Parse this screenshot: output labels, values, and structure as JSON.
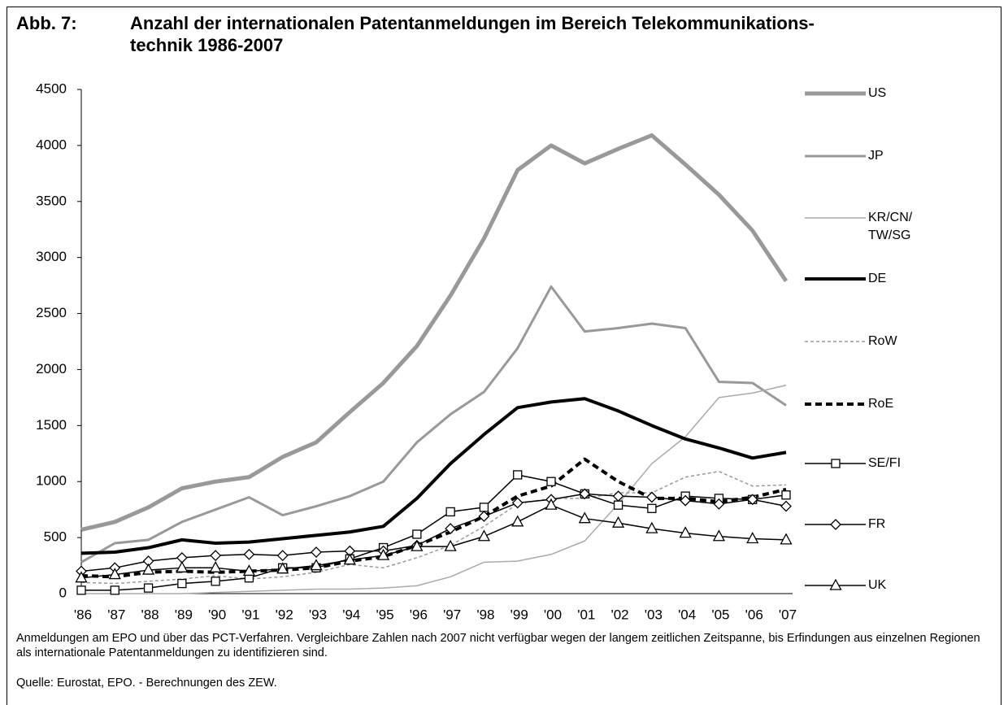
{
  "chart_data": {
    "type": "line",
    "figure_label": "Abb. 7:",
    "title_lines": [
      "Anzahl der internationalen Patentanmeldungen im Bereich Telekommunikations-",
      "technik 1986-2007"
    ],
    "categories": [
      "'86",
      "'87",
      "'88",
      "'89",
      "'90",
      "'91",
      "'92",
      "'93",
      "'94",
      "'95",
      "'96",
      "'97",
      "'98",
      "'99",
      "'00",
      "'01",
      "'02",
      "'03",
      "'04",
      "'05",
      "'06",
      "'07"
    ],
    "ylim": [
      0,
      4500
    ],
    "yticks": [
      0,
      500,
      1000,
      1500,
      2000,
      2500,
      3000,
      3500,
      4000,
      4500
    ],
    "grid": false,
    "legend": "right",
    "series": [
      {
        "name": "US",
        "color": "#999999",
        "width": 5,
        "dash": false,
        "marker": "none",
        "values": [
          570,
          640,
          770,
          940,
          1000,
          1040,
          1220,
          1350,
          1620,
          1880,
          2210,
          2660,
          3170,
          3780,
          4000,
          3840,
          3970,
          4090,
          3830,
          3560,
          3240,
          2790
        ]
      },
      {
        "name": "JP",
        "color": "#999999",
        "width": 3,
        "dash": false,
        "marker": "none",
        "values": [
          280,
          450,
          480,
          640,
          750,
          860,
          700,
          780,
          870,
          1000,
          1350,
          1600,
          1800,
          2190,
          2740,
          2340,
          2370,
          2410,
          2370,
          1890,
          1880,
          1680
        ]
      },
      {
        "name": "KR/CN/TW/SG",
        "color": "#aaaaaa",
        "width": 1.5,
        "dash": false,
        "marker": "none",
        "values": [
          0,
          0,
          0,
          0,
          10,
          20,
          30,
          40,
          40,
          50,
          70,
          150,
          280,
          290,
          350,
          470,
          800,
          1160,
          1400,
          1750,
          1790,
          1860
        ]
      },
      {
        "name": "DE",
        "color": "#000000",
        "width": 4,
        "dash": false,
        "marker": "none",
        "values": [
          360,
          370,
          410,
          480,
          450,
          460,
          490,
          520,
          550,
          600,
          850,
          1160,
          1420,
          1660,
          1710,
          1740,
          1630,
          1500,
          1380,
          1300,
          1210,
          1260
        ]
      },
      {
        "name": "RoW",
        "color": "#999999",
        "width": 1.5,
        "dash": true,
        "marker": "none",
        "values": [
          100,
          90,
          110,
          130,
          160,
          130,
          150,
          190,
          260,
          230,
          320,
          430,
          600,
          800,
          850,
          850,
          900,
          900,
          1040,
          1090,
          960,
          970
        ]
      },
      {
        "name": "RoE",
        "color": "#000000",
        "width": 4,
        "dash": true,
        "marker": "none",
        "values": [
          160,
          150,
          190,
          200,
          190,
          200,
          210,
          230,
          290,
          330,
          430,
          550,
          690,
          870,
          960,
          1200,
          1000,
          850,
          850,
          820,
          860,
          930
        ]
      },
      {
        "name": "SE/FI",
        "color": "#000000",
        "width": 1.5,
        "dash": false,
        "marker": "square",
        "values": [
          30,
          30,
          50,
          90,
          110,
          140,
          230,
          230,
          310,
          410,
          530,
          730,
          770,
          1060,
          1000,
          890,
          790,
          760,
          870,
          850,
          840,
          880
        ]
      },
      {
        "name": "FR",
        "color": "#000000",
        "width": 1.5,
        "dash": false,
        "marker": "diamond",
        "values": [
          200,
          230,
          290,
          320,
          340,
          350,
          340,
          370,
          380,
          380,
          430,
          580,
          690,
          810,
          840,
          890,
          870,
          860,
          830,
          800,
          840,
          780
        ]
      },
      {
        "name": "UK",
        "color": "#000000",
        "width": 1.5,
        "dash": false,
        "marker": "triangle",
        "values": [
          140,
          170,
          210,
          230,
          230,
          200,
          220,
          250,
          300,
          340,
          420,
          420,
          510,
          640,
          790,
          670,
          630,
          580,
          540,
          510,
          490,
          480
        ]
      }
    ],
    "notes": [
      "Anmeldungen am EPO und über das PCT-Verfahren. Vergleichbare Zahlen nach 2007 nicht verfügbar wegen der langem zeitlichen Zeitspanne, bis Erfindungen aus einzelnen Regionen als internationale Patentanmeldungen zu identifizieren sind.",
      "Quelle: Eurostat, EPO. - Berechnungen des ZEW."
    ]
  }
}
